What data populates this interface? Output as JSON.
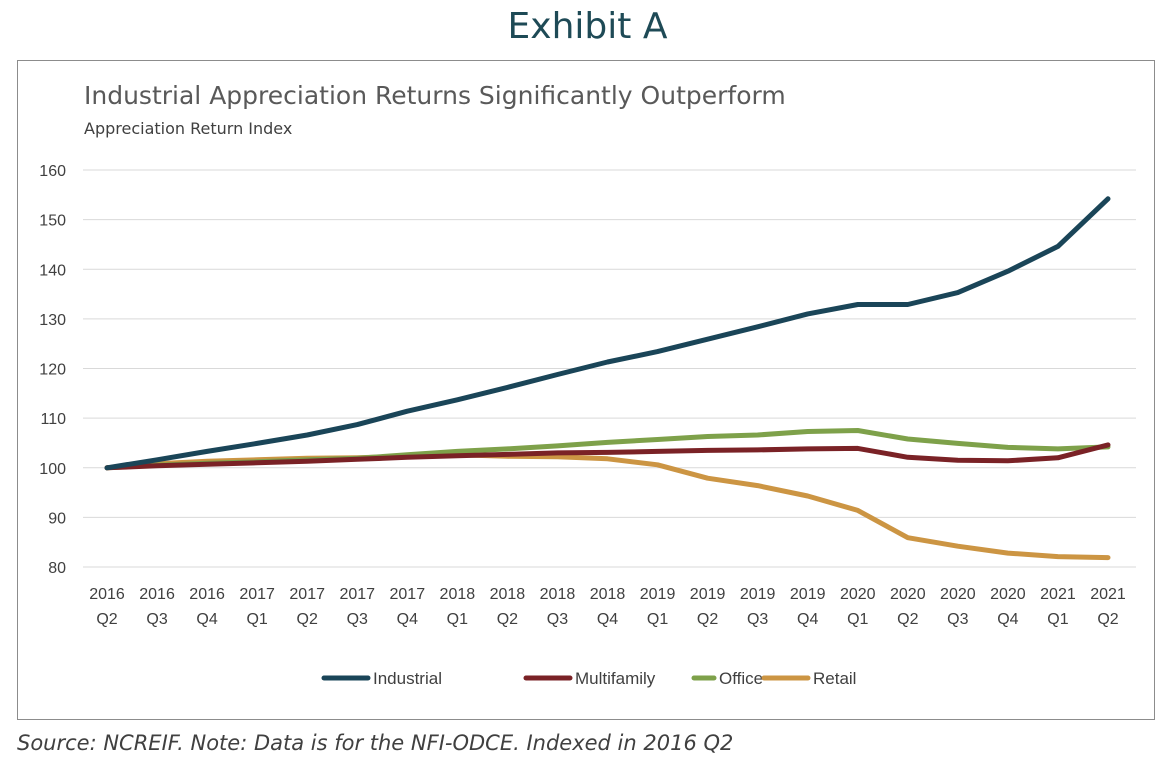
{
  "exhibit_title": "Exhibit A",
  "source_note": "Source: NCREIF. Note: Data is for the NFI-ODCE. Indexed in 2016 Q2",
  "chart_data": {
    "type": "line",
    "title": "Industrial Appreciation Returns Significantly Outperform",
    "subtitle": "Appreciation Return Index",
    "categories": [
      [
        "2016",
        "Q2"
      ],
      [
        "2016",
        "Q3"
      ],
      [
        "2016",
        "Q4"
      ],
      [
        "2017",
        "Q1"
      ],
      [
        "2017",
        "Q2"
      ],
      [
        "2017",
        "Q3"
      ],
      [
        "2017",
        "Q4"
      ],
      [
        "2018",
        "Q1"
      ],
      [
        "2018",
        "Q2"
      ],
      [
        "2018",
        "Q3"
      ],
      [
        "2018",
        "Q4"
      ],
      [
        "2019",
        "Q1"
      ],
      [
        "2019",
        "Q2"
      ],
      [
        "2019",
        "Q3"
      ],
      [
        "2019",
        "Q4"
      ],
      [
        "2020",
        "Q1"
      ],
      [
        "2020",
        "Q2"
      ],
      [
        "2020",
        "Q3"
      ],
      [
        "2020",
        "Q4"
      ],
      [
        "2021",
        "Q1"
      ],
      [
        "2021",
        "Q2"
      ]
    ],
    "ylim": [
      80,
      160
    ],
    "yticks": [
      80,
      90,
      100,
      110,
      120,
      130,
      140,
      150,
      160
    ],
    "grid": true,
    "legend_position": "bottom",
    "series": [
      {
        "name": "Industrial",
        "color": "#1a4558",
        "values": [
          100,
          101.6,
          103.3,
          104.9,
          106.6,
          108.7,
          111.4,
          113.7,
          116.2,
          118.8,
          121.3,
          123.4,
          125.9,
          128.4,
          131.0,
          132.9,
          132.9,
          135.3,
          139.6,
          144.6,
          154.2
        ]
      },
      {
        "name": "Multifamily",
        "color": "#7a2226",
        "values": [
          100,
          100.4,
          100.7,
          101.0,
          101.3,
          101.7,
          102.1,
          102.4,
          102.7,
          103.0,
          103.1,
          103.3,
          103.5,
          103.6,
          103.8,
          103.9,
          102.1,
          101.5,
          101.4,
          102.0,
          104.6
        ]
      },
      {
        "name": "Office",
        "color": "#7ea14a",
        "values": [
          100,
          100.5,
          100.9,
          101.2,
          101.6,
          101.9,
          102.6,
          103.3,
          103.8,
          104.4,
          105.1,
          105.7,
          106.3,
          106.6,
          107.3,
          107.5,
          105.8,
          104.9,
          104.1,
          103.8,
          104.2
        ]
      },
      {
        "name": "Retail",
        "color": "#cc9543",
        "values": [
          100,
          100.8,
          101.3,
          101.6,
          101.9,
          102.0,
          102.3,
          102.6,
          102.3,
          102.2,
          101.8,
          100.6,
          97.9,
          96.4,
          94.3,
          91.4,
          85.9,
          84.2,
          82.8,
          82.1,
          81.9
        ]
      }
    ]
  }
}
